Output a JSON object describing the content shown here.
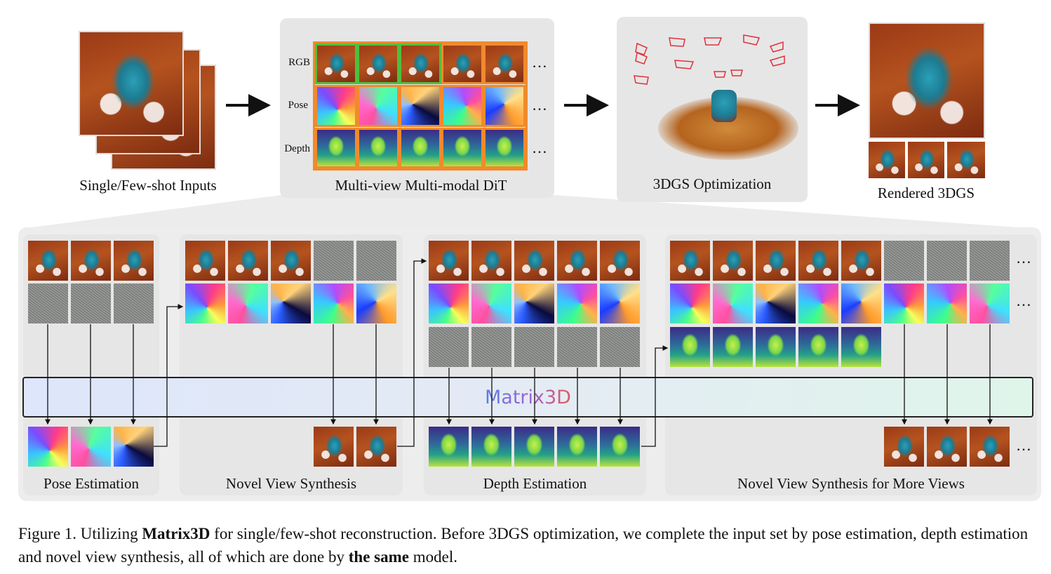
{
  "top": {
    "inputs_label": "Single/Few-shot Inputs",
    "dit_label": "Multi-view Multi-modal DiT",
    "dit_rows": [
      "RGB",
      "Pose",
      "Depth"
    ],
    "dit_ellipsis": "…",
    "opt_label": "3DGS Optimization",
    "rendered_label": "Rendered 3DGS"
  },
  "matrix_label": "Matrix3D",
  "tasks": {
    "pose_estimation": "Pose Estimation",
    "novel_view_synthesis": "Novel View Synthesis",
    "depth_estimation": "Depth Estimation",
    "more_views": "Novel View Synthesis for More Views",
    "ellipsis": "…"
  },
  "caption": {
    "prefix": "Figure 1. Utilizing ",
    "bold1": "Matrix3D",
    "middle": " for single/few-shot reconstruction. Before 3DGS optimization, we complete the input set by pose estimation, depth estimation and novel view synthesis, all of which are done by ",
    "bold2": "the same",
    "suffix": " model."
  },
  "colors": {
    "panel_bg": "#e6e6e6",
    "rgb_outline": "#4fbf3c",
    "generated_outline": "#f08a2c",
    "camera_frustum": "#e0303a"
  },
  "icons": {
    "arrow": "right-arrow",
    "camera": "camera-frustum"
  }
}
